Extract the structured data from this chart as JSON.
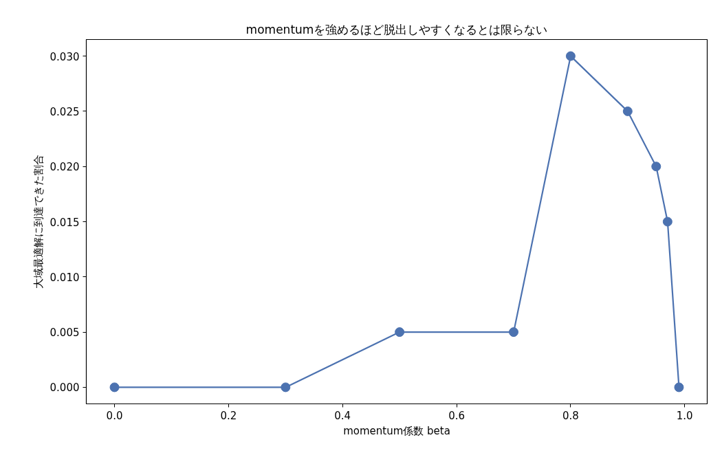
{
  "chart_data": {
    "type": "line",
    "title": "momentumを強めるほど脱出しやすくなるとは限らない",
    "xlabel": "momentum係数 beta",
    "ylabel": "大域最適解に到達できた割合",
    "x": [
      0.0,
      0.3,
      0.5,
      0.7,
      0.8,
      0.9,
      0.95,
      0.97,
      0.99
    ],
    "values": [
      0.0,
      0.0,
      0.005,
      0.005,
      0.03,
      0.025,
      0.02,
      0.015,
      0.0
    ],
    "color": "#4c72b0",
    "marker": "circle",
    "line_style": "solid",
    "xlim": [
      -0.0495,
      1.0395
    ],
    "xticks": [
      {
        "value": 0,
        "label": "0.0"
      },
      0.2,
      0.4,
      0.6,
      0.8,
      {
        "value": 1,
        "label": "1.0"
      }
    ],
    "ylim": [
      -0.0015,
      0.0315
    ],
    "yticks": [
      {
        "value": 0,
        "label": "0.000"
      },
      0.005,
      {
        "value": 0.01,
        "label": "0.010"
      },
      0.015,
      {
        "value": 0.02,
        "label": "0.020"
      },
      0.025,
      {
        "value": 0.03,
        "label": "0.030"
      }
    ]
  }
}
